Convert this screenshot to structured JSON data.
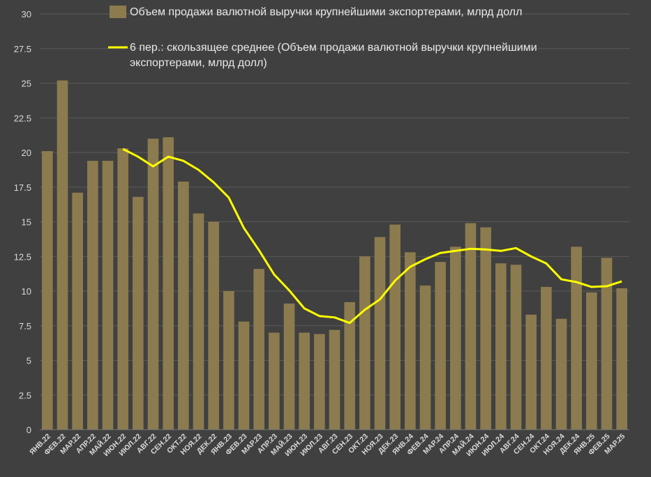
{
  "chart_data": {
    "type": "bar",
    "categories": [
      "ЯНВ.22",
      "ФЕВ.22",
      "МАР.22",
      "АПР.22",
      "МАЙ.22",
      "ИЮН.22",
      "ИЮЛ.22",
      "АВГ.22",
      "СЕН.22",
      "ОКТ.22",
      "НОЯ.22",
      "ДЕК.22",
      "ЯНВ.23",
      "ФЕВ.23",
      "МАР.23",
      "АПР.23",
      "МАЙ.23",
      "ИЮН.23",
      "ИЮЛ.23",
      "АВГ.23",
      "СЕН.23",
      "ОКТ.23",
      "НОЯ.23",
      "ДЕК.23",
      "ЯНВ.24",
      "ФЕВ.24",
      "МАР.24",
      "АПР.24",
      "МАЙ.24",
      "ИЮН.24",
      "ИЮЛ.24",
      "АВГ.24",
      "СЕН.24",
      "ОКТ.24",
      "НОЯ.24",
      "ДЕК.24",
      "ЯНВ.25",
      "ФЕВ.25",
      "МАР.25"
    ],
    "series": [
      {
        "name": "Объем продажи  валютной выручки крупнейшими экспортерами, млрд долл",
        "kind": "bar",
        "color": "#8c7b4e",
        "values": [
          20.1,
          25.2,
          17.1,
          19.4,
          19.4,
          20.3,
          16.8,
          21.0,
          21.1,
          17.9,
          15.6,
          15.0,
          10.0,
          7.8,
          11.6,
          7.0,
          9.1,
          7.0,
          6.9,
          7.2,
          9.2,
          12.5,
          13.9,
          14.8,
          12.8,
          10.4,
          12.1,
          13.2,
          14.9,
          14.6,
          12.0,
          11.9,
          8.3,
          10.3,
          8.0,
          13.2,
          9.9,
          12.4,
          10.2
        ]
      },
      {
        "name": "6 пер.: скользящее среднее (Объем продажи  валютной выручки крупнейшими экспортерами, млрд долл)",
        "kind": "line",
        "color": "#ffff00",
        "values": [
          null,
          null,
          null,
          null,
          null,
          20.25,
          19.7,
          19.0,
          19.7,
          19.4,
          18.75,
          17.85,
          16.75,
          14.55,
          12.95,
          11.2,
          10.05,
          8.75,
          8.2,
          8.1,
          7.7,
          8.65,
          9.4,
          10.75,
          11.75,
          12.3,
          12.75,
          12.9,
          13.05,
          13.0,
          12.9,
          13.1,
          12.5,
          12.0,
          10.85,
          10.65,
          10.3,
          10.35,
          10.7
        ]
      }
    ],
    "ylim": [
      0,
      30
    ],
    "yticks": [
      "0",
      "2.5",
      "5",
      "7.5",
      "10",
      "12.5",
      "15",
      "17.5",
      "20",
      "22.5",
      "25",
      "27.5",
      "30"
    ],
    "grid": true,
    "legend_position": "top-center",
    "title": "",
    "xlabel": "",
    "ylabel": ""
  }
}
